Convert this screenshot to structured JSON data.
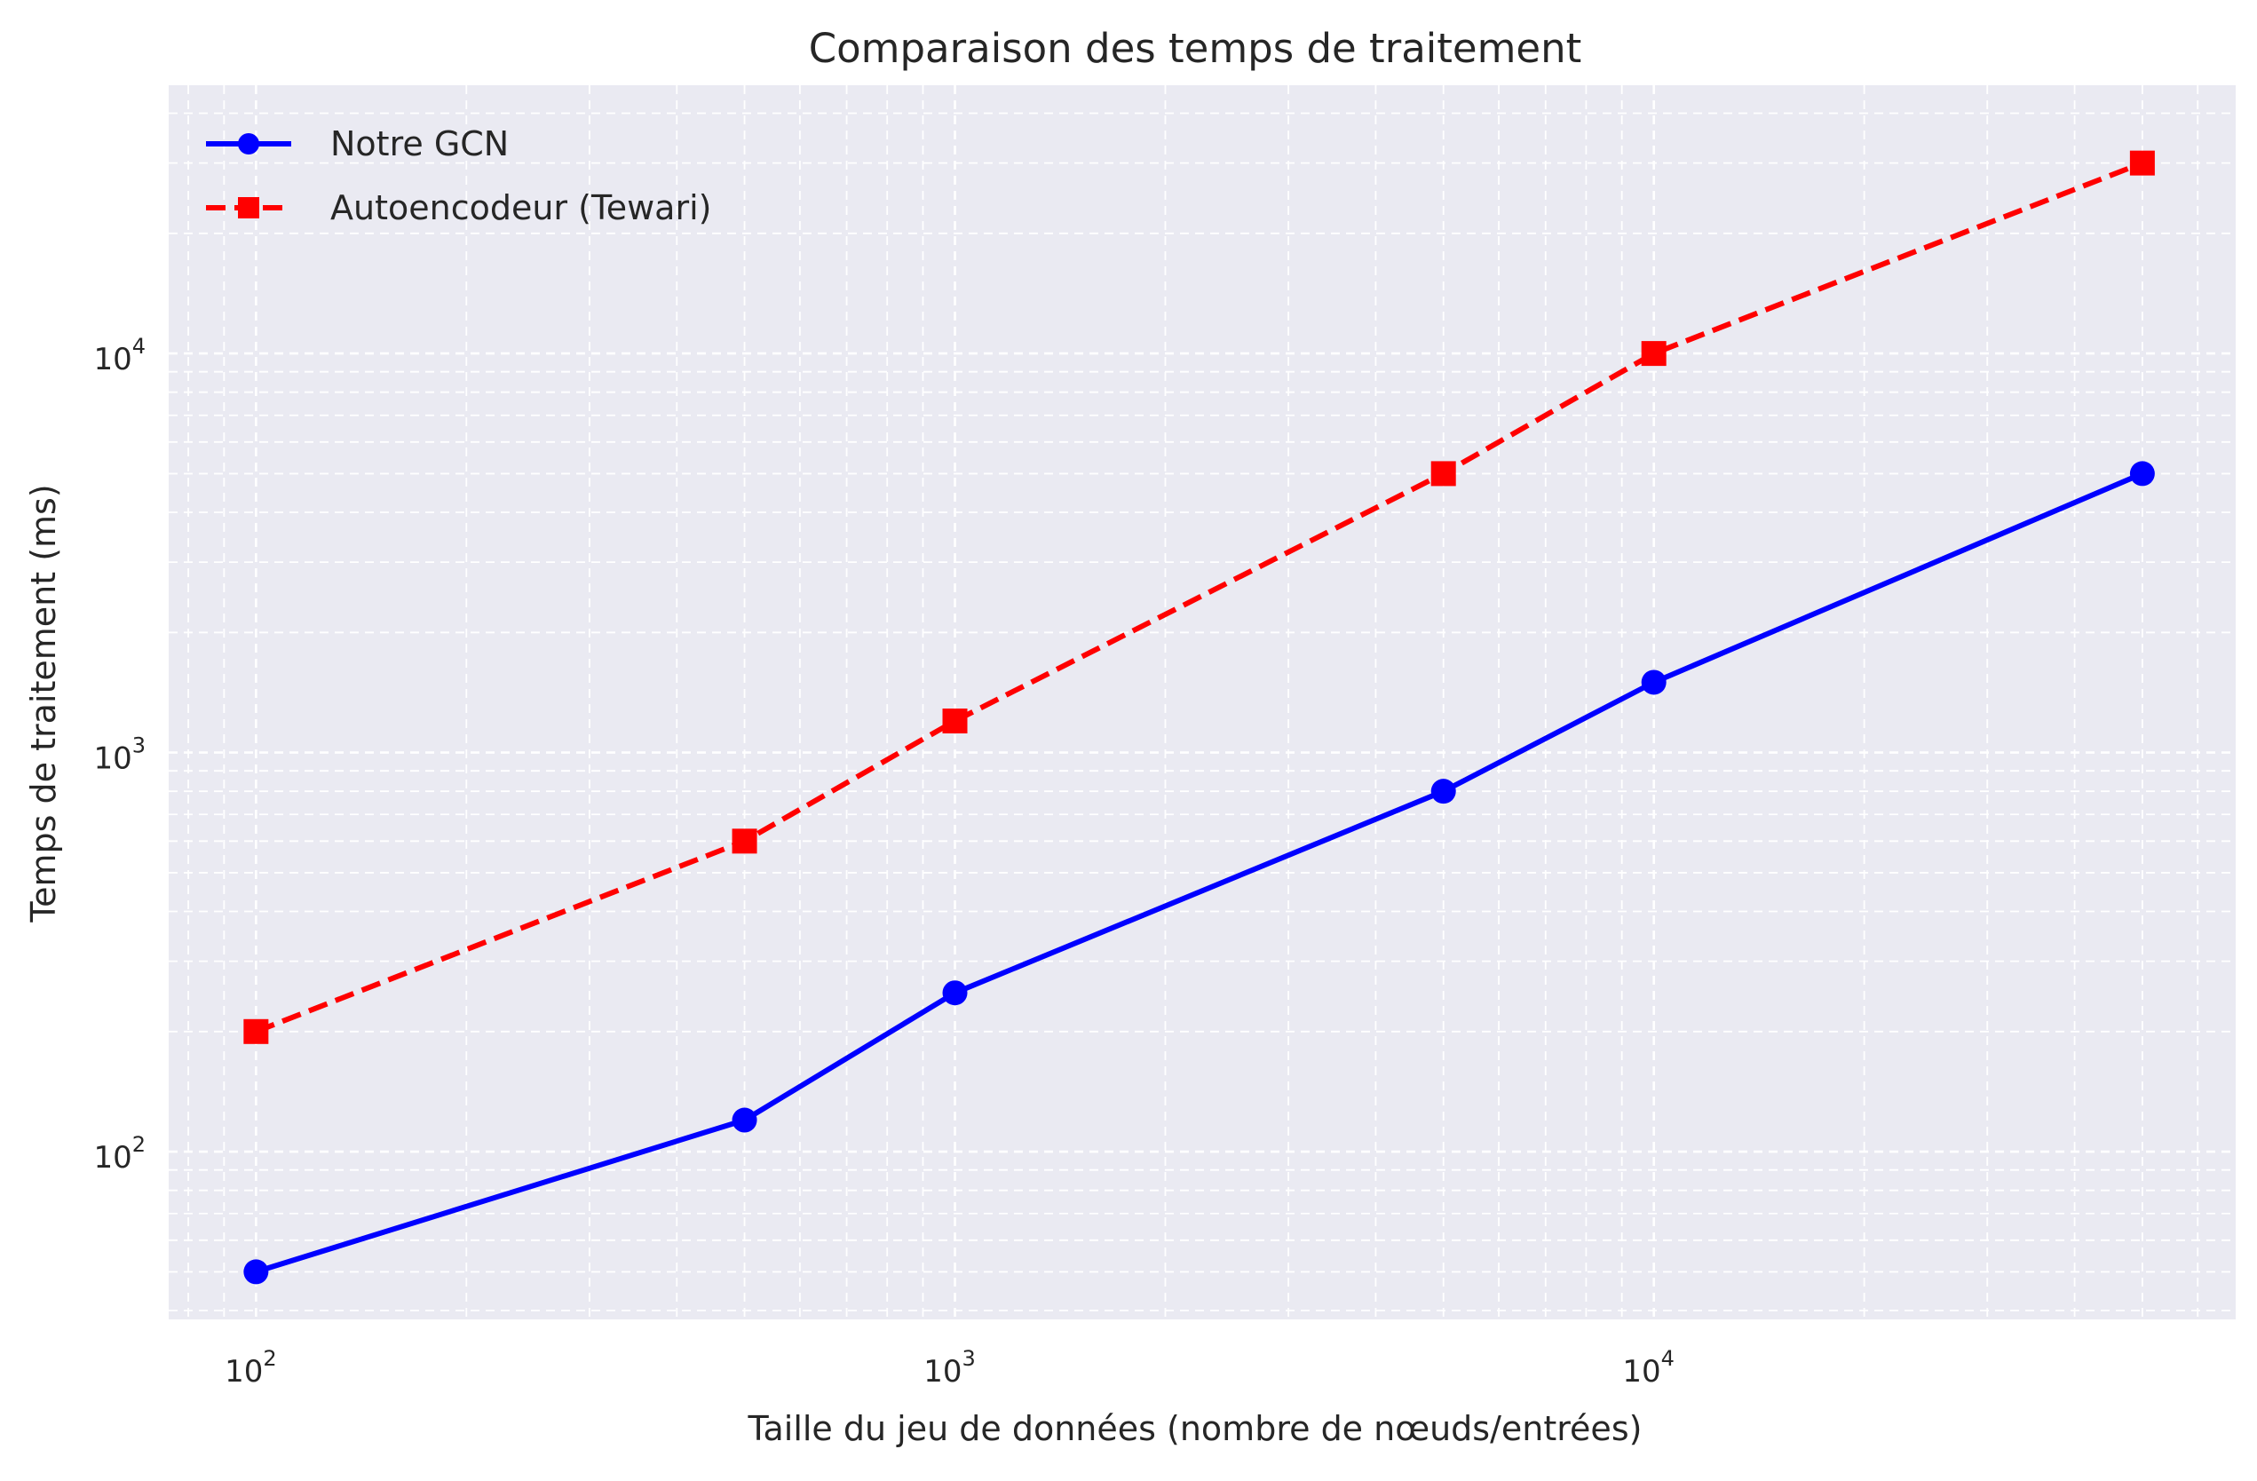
{
  "chart_data": {
    "type": "line",
    "title": "Comparaison des temps de traitement",
    "xlabel": "Taille du jeu de données (nombre de nœuds/entrées)",
    "ylabel": "Temps de traitement (ms)",
    "xscale": "log",
    "yscale": "log",
    "xlim": [
      75,
      68000
    ],
    "ylim": [
      38,
      47000
    ],
    "x_ticks": [
      {
        "base": "10",
        "exp": "2",
        "value": 100
      },
      {
        "base": "10",
        "exp": "3",
        "value": 1000
      },
      {
        "base": "10",
        "exp": "4",
        "value": 10000
      }
    ],
    "y_ticks": [
      {
        "base": "10",
        "exp": "2",
        "value": 100
      },
      {
        "base": "10",
        "exp": "3",
        "value": 1000
      },
      {
        "base": "10",
        "exp": "4",
        "value": 10000
      }
    ],
    "grid": true,
    "legend_position": "top-left",
    "series": [
      {
        "name": "Notre GCN",
        "color": "#0000ff",
        "line_style": "solid",
        "marker": "circle",
        "x": [
          100,
          500,
          1000,
          5000,
          10000,
          50000
        ],
        "y": [
          50,
          120,
          250,
          800,
          1500,
          5000
        ]
      },
      {
        "name": "Autoencodeur (Tewari)",
        "color": "#ff0000",
        "line_style": "dashed",
        "marker": "square",
        "x": [
          100,
          500,
          1000,
          5000,
          10000,
          50000
        ],
        "y": [
          200,
          600,
          1200,
          5000,
          10000,
          30000
        ]
      }
    ]
  },
  "style": {
    "plot_background": "#eaeaf2",
    "grid_color": "#ffffff",
    "text_color": "#262626"
  }
}
